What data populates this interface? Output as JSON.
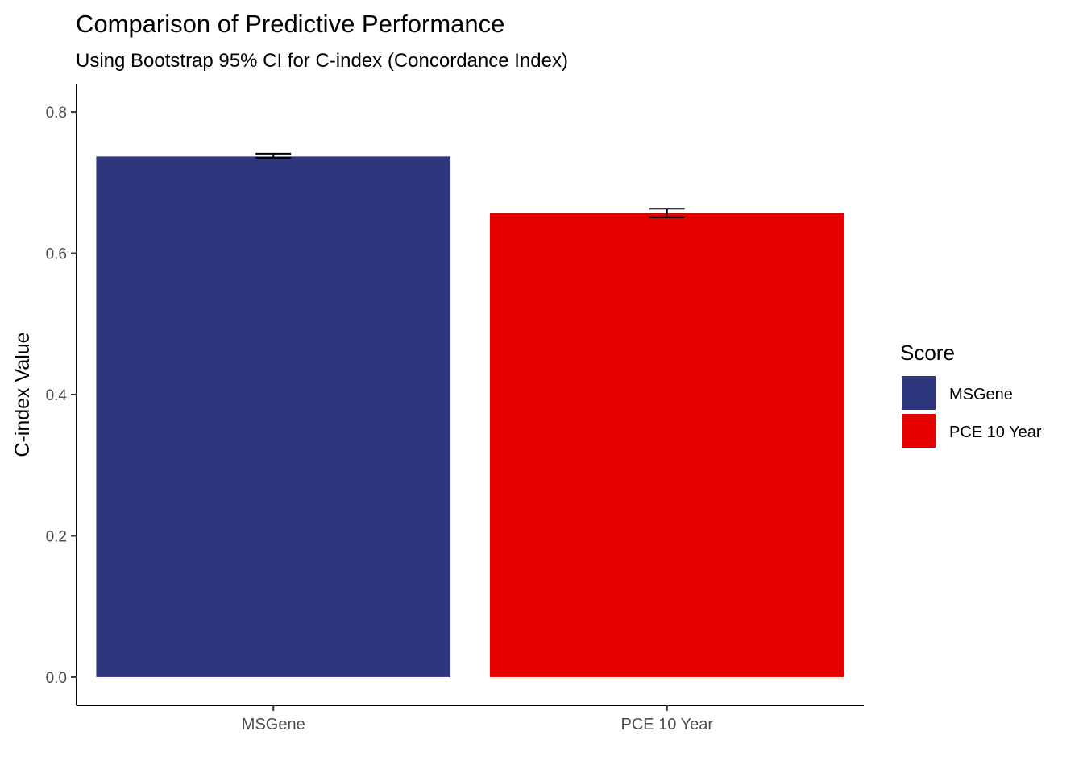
{
  "chart_data": {
    "type": "bar",
    "title": "Comparison of Predictive Performance",
    "subtitle": "Using Bootstrap 95% CI for C-index (Concordance Index)",
    "xlabel": "",
    "ylabel": "C-index Value",
    "ylim": [
      -0.04,
      0.84
    ],
    "yticks": [
      0.0,
      0.2,
      0.4,
      0.6,
      0.8
    ],
    "ytick_labels": [
      "0.0",
      "0.2",
      "0.4",
      "0.6",
      "0.8"
    ],
    "grid": false,
    "categories": [
      "MSGene",
      "PCE 10 Year"
    ],
    "values": [
      0.737,
      0.657
    ],
    "ci_lower": [
      0.735,
      0.651
    ],
    "ci_upper": [
      0.741,
      0.663
    ],
    "colors": [
      "#2E367D",
      "#E60000"
    ],
    "legend": {
      "title": "Score",
      "placement": "right",
      "entries": [
        "MSGene",
        "PCE 10 Year"
      ]
    }
  }
}
